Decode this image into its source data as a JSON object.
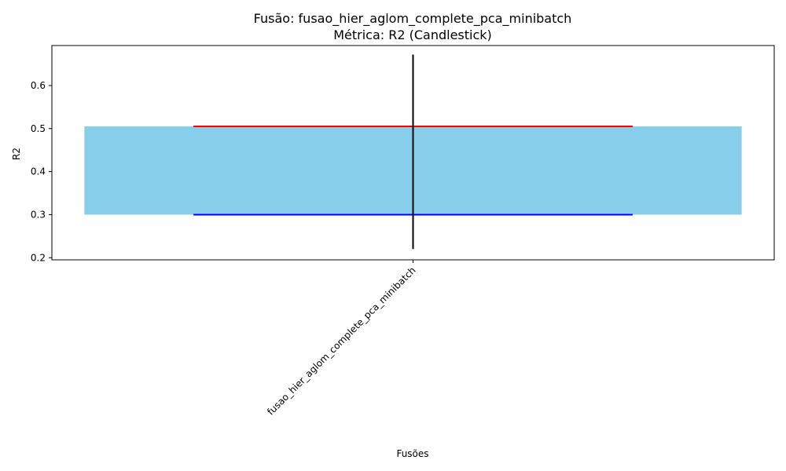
{
  "chart_data": {
    "type": "candlestick",
    "title": "Fusão: fusao_hier_aglom_complete_pca_minibatch",
    "subtitle": "Métrica: R2 (Candlestick)",
    "xlabel": "Fusões",
    "ylabel": "R2",
    "categories": [
      "fusao_hier_aglom_complete_pca_minibatch"
    ],
    "candles": [
      {
        "category": "fusao_hier_aglom_complete_pca_minibatch",
        "low": 0.22,
        "high": 0.672,
        "q1": 0.3,
        "q3": 0.505
      }
    ],
    "ylim": [
      0.195,
      0.693
    ],
    "yticks": [
      0.2,
      0.3,
      0.4,
      0.5,
      0.6
    ],
    "ytick_labels": [
      "0.2",
      "0.3",
      "0.4",
      "0.5",
      "0.6"
    ],
    "grid": false,
    "colors": {
      "box": "#87ceeb",
      "q3_line": "#ff0000",
      "q1_line": "#0000ff",
      "whisker": "#000000"
    }
  }
}
